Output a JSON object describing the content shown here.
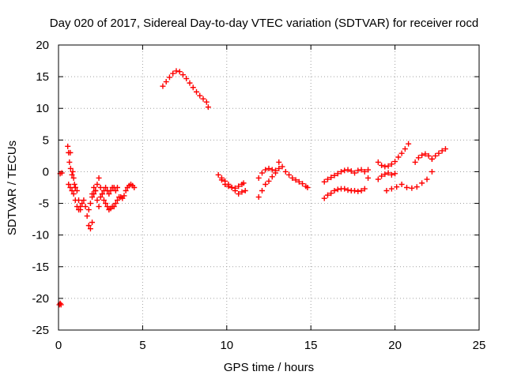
{
  "chart_data": {
    "type": "scatter",
    "title": "Day 020 of 2017, Sidereal Day-to-day VTEC variation (SDTVAR) for receiver rocd",
    "xlabel": "GPS time / hours",
    "ylabel": "SDTVAR / TECUs",
    "xlim": [
      0,
      25
    ],
    "ylim": [
      -25,
      20
    ],
    "xticks": [
      0,
      5,
      10,
      15,
      20,
      25
    ],
    "yticks": [
      -25,
      -20,
      -15,
      -10,
      -5,
      0,
      5,
      10,
      15,
      20
    ],
    "xtick_labels": [
      "0",
      "5",
      "10",
      "15",
      "20",
      "25"
    ],
    "ytick_labels": [
      "-25",
      "-20",
      "-15",
      "-10",
      "-5",
      "0",
      "5",
      "10",
      "15",
      "20"
    ],
    "grid": true,
    "legend": "none",
    "marker": "+",
    "color": "#ff0000",
    "series": [
      {
        "x": [
          0.05,
          0.1,
          0.15
        ],
        "y": [
          -21.0,
          -20.8,
          -21.0
        ]
      },
      {
        "x": [
          0.1,
          0.2
        ],
        "y": [
          -0.3,
          -0.2
        ]
      },
      {
        "x": [
          0.55,
          0.6,
          0.65,
          0.7,
          0.72,
          0.8,
          0.85,
          0.9,
          0.95,
          1.0
        ],
        "y": [
          4.0,
          3.0,
          1.5,
          3.0,
          0.5,
          -0.5,
          0.0,
          -1.0,
          -2.0,
          -2.5
        ]
      },
      {
        "x": [
          0.6,
          0.7,
          0.8,
          0.9,
          1.0,
          1.1,
          1.2,
          1.3
        ],
        "y": [
          -2.0,
          -2.5,
          -3.0,
          -3.5,
          -4.5,
          -5.5,
          -6.0,
          -5.5
        ]
      },
      {
        "x": [
          1.0,
          1.1,
          1.2,
          1.3,
          1.4,
          1.5,
          1.6,
          1.7,
          1.8,
          1.9,
          2.0
        ],
        "y": [
          -2.5,
          -3.0,
          -4.5,
          -6.0,
          -5.0,
          -4.5,
          -5.5,
          -7.0,
          -8.5,
          -9.0,
          -8.0
        ]
      },
      {
        "x": [
          1.8,
          1.9,
          2.0,
          2.1,
          2.2,
          2.3,
          2.4,
          2.5,
          2.6,
          2.7
        ],
        "y": [
          -6.0,
          -5.0,
          -3.5,
          -2.5,
          -3.0,
          -2.0,
          -1.0,
          -2.5,
          -3.5,
          -3.0
        ]
      },
      {
        "x": [
          2.0,
          2.1,
          2.2,
          2.3,
          2.4,
          2.5,
          2.6,
          2.7,
          2.8,
          2.9,
          3.0,
          3.1,
          3.2,
          3.3
        ],
        "y": [
          -4.0,
          -3.5,
          -3.0,
          -4.5,
          -5.5,
          -4.0,
          -3.5,
          -4.5,
          -5.0,
          -5.5,
          -6.0,
          -5.8,
          -5.5,
          -5.5
        ]
      },
      {
        "x": [
          2.8,
          2.9,
          3.0,
          3.1,
          3.2,
          3.3,
          3.4,
          3.5
        ],
        "y": [
          -2.5,
          -3.0,
          -3.5,
          -3.0,
          -2.5,
          -2.5,
          -3.0,
          -2.5
        ]
      },
      {
        "x": [
          3.4,
          3.5,
          3.6,
          3.7,
          3.8,
          3.9,
          4.0,
          4.1,
          4.2,
          4.3,
          4.4,
          4.5
        ],
        "y": [
          -5.0,
          -4.5,
          -4.0,
          -4.0,
          -4.2,
          -3.8,
          -3.0,
          -2.5,
          -2.2,
          -2.0,
          -2.2,
          -2.5
        ]
      },
      {
        "x": [
          6.2,
          6.4,
          6.6,
          6.8,
          7.0,
          7.2,
          7.4,
          7.6,
          7.8,
          8.0,
          8.2,
          8.4,
          8.6,
          8.8,
          8.9
        ],
        "y": [
          13.5,
          14.2,
          14.9,
          15.5,
          15.9,
          15.8,
          15.3,
          14.7,
          14.0,
          13.3,
          12.6,
          12.0,
          11.5,
          11.0,
          10.2
        ]
      },
      {
        "x": [
          9.5,
          9.7,
          9.9,
          10.1,
          10.3,
          10.5,
          10.7,
          10.9,
          11.0
        ],
        "y": [
          -0.5,
          -1.3,
          -2.0,
          -2.3,
          -2.5,
          -2.6,
          -2.3,
          -2.0,
          -1.8
        ]
      },
      {
        "x": [
          9.7,
          9.9,
          10.1,
          10.3,
          10.5,
          10.7,
          10.9,
          11.1
        ],
        "y": [
          -1.0,
          -1.5,
          -2.0,
          -2.5,
          -3.0,
          -3.5,
          -3.2,
          -3.0
        ]
      },
      {
        "x": [
          11.9,
          12.1,
          12.3,
          12.5,
          12.7,
          12.9,
          13.1
        ],
        "y": [
          -4.0,
          -3.0,
          -2.0,
          -1.5,
          -0.8,
          -0.2,
          0.5
        ]
      },
      {
        "x": [
          11.9,
          12.1,
          12.3,
          12.5,
          12.7,
          12.9
        ],
        "y": [
          -1.0,
          -0.2,
          0.3,
          0.5,
          0.3,
          0.2
        ]
      },
      {
        "x": [
          13.1,
          13.3,
          13.5,
          13.7,
          13.9,
          14.1,
          14.3,
          14.5,
          14.7,
          14.8
        ],
        "y": [
          1.5,
          0.8,
          0.0,
          -0.5,
          -1.0,
          -1.3,
          -1.6,
          -1.9,
          -2.3,
          -2.5
        ]
      },
      {
        "x": [
          15.8,
          16.0,
          16.2,
          16.4,
          16.6,
          16.8,
          17.0,
          17.2,
          17.4,
          17.6,
          17.8,
          18.0,
          18.2,
          18.4
        ],
        "y": [
          -4.2,
          -3.7,
          -3.4,
          -3.0,
          -2.8,
          -2.7,
          -2.7,
          -2.9,
          -3.0,
          -3.0,
          -3.1,
          -3.0,
          -2.7,
          -1.0
        ]
      },
      {
        "x": [
          15.8,
          16.0,
          16.2,
          16.4,
          16.6,
          16.8,
          17.0,
          17.2,
          17.4,
          17.6,
          17.8,
          18.0,
          18.2,
          18.4
        ],
        "y": [
          -1.6,
          -1.2,
          -0.9,
          -0.6,
          -0.3,
          0.0,
          0.2,
          0.3,
          0.1,
          -0.2,
          0.2,
          0.3,
          0.0,
          0.3
        ]
      },
      {
        "x": [
          19.0,
          19.2,
          19.4,
          19.6,
          19.8,
          20.0,
          20.2,
          20.4,
          20.6,
          20.8
        ],
        "y": [
          1.5,
          1.0,
          0.8,
          0.9,
          1.2,
          1.6,
          2.3,
          2.9,
          3.6,
          4.4
        ]
      },
      {
        "x": [
          19.0,
          19.2,
          19.4,
          19.6,
          19.8,
          20.0
        ],
        "y": [
          -1.2,
          -0.7,
          -0.4,
          -0.2,
          -0.5,
          -0.3
        ]
      },
      {
        "x": [
          19.5,
          19.8,
          20.1,
          20.4,
          20.7,
          21.0,
          21.3,
          21.6,
          21.9,
          22.2
        ],
        "y": [
          -3.0,
          -2.7,
          -2.4,
          -2.0,
          -2.5,
          -2.6,
          -2.4,
          -1.8,
          -1.2,
          0.0
        ]
      },
      {
        "x": [
          21.2,
          21.4,
          21.6,
          21.8,
          22.0,
          22.2
        ],
        "y": [
          1.5,
          2.2,
          2.6,
          2.8,
          2.5,
          2.0
        ]
      },
      {
        "x": [
          22.2,
          22.4,
          22.6,
          22.8,
          23.0
        ],
        "y": [
          2.0,
          2.5,
          2.9,
          3.3,
          3.6
        ]
      }
    ]
  }
}
